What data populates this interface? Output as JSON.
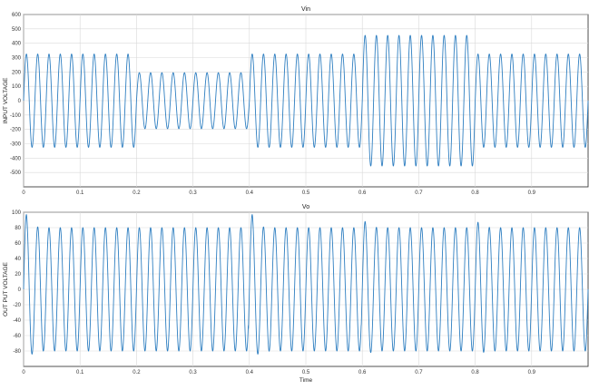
{
  "chart_data": [
    {
      "type": "line",
      "title": "Vin",
      "xlabel": "",
      "ylabel": "INPUT VOLTAGE",
      "xlim": [
        0,
        1
      ],
      "ylim": [
        -600,
        600
      ],
      "xticks": [
        0,
        0.1,
        0.2,
        0.3,
        0.4,
        0.5,
        0.6,
        0.7,
        0.8,
        0.9
      ],
      "xtick_labels": [
        "0",
        "0.1",
        "0.2",
        "0.3",
        "0.4",
        "0.5",
        "0.6",
        "0.7",
        "0.8",
        "0.9"
      ],
      "yticks": [
        600,
        500,
        400,
        300,
        200,
        100,
        0,
        -100,
        -200,
        -300,
        -400,
        -500
      ],
      "ytick_labels": [
        "600",
        "500",
        "400",
        "300",
        "200",
        "100",
        "0",
        "-100",
        "-200",
        "-300",
        "-400",
        "-500"
      ],
      "grid": true,
      "series": [
        {
          "waveform": "sine",
          "frequency_hz": 50,
          "color": "#2f7fc1",
          "segments": [
            {
              "t_start": 0.0,
              "t_end": 0.2,
              "amplitude": 325
            },
            {
              "t_start": 0.2,
              "t_end": 0.4,
              "amplitude": 195
            },
            {
              "t_start": 0.4,
              "t_end": 0.6,
              "amplitude": 325
            },
            {
              "t_start": 0.6,
              "t_end": 0.8,
              "amplitude": 455
            },
            {
              "t_start": 0.8,
              "t_end": 1.0,
              "amplitude": 325
            }
          ]
        }
      ]
    },
    {
      "type": "line",
      "title": "Vo",
      "xlabel": "Time",
      "ylabel": "OUT PUT VOLTAGE",
      "xlim": [
        0,
        1
      ],
      "ylim": [
        -100,
        100
      ],
      "xticks": [
        0,
        0.1,
        0.2,
        0.3,
        0.4,
        0.5,
        0.6,
        0.7,
        0.8,
        0.9
      ],
      "xtick_labels": [
        "0",
        "0.1",
        "0.2",
        "0.3",
        "0.4",
        "0.5",
        "0.6",
        "0.7",
        "0.8",
        "0.9"
      ],
      "yticks": [
        100,
        80,
        60,
        40,
        20,
        0,
        -20,
        -40,
        -60,
        -80
      ],
      "ytick_labels": [
        "100",
        "80",
        "60",
        "40",
        "20",
        "0",
        "-20",
        "-40",
        "-60",
        "-80"
      ],
      "grid": true,
      "series": [
        {
          "waveform": "sine",
          "frequency_hz": 50,
          "color": "#2f7fc1",
          "amplitude": 80,
          "transients": [
            {
              "t": 0.005,
              "peak": 97
            },
            {
              "t": 0.405,
              "peak": 97
            },
            {
              "t": 0.605,
              "peak": 88
            },
            {
              "t": 0.805,
              "peak": 87
            }
          ]
        }
      ]
    }
  ]
}
